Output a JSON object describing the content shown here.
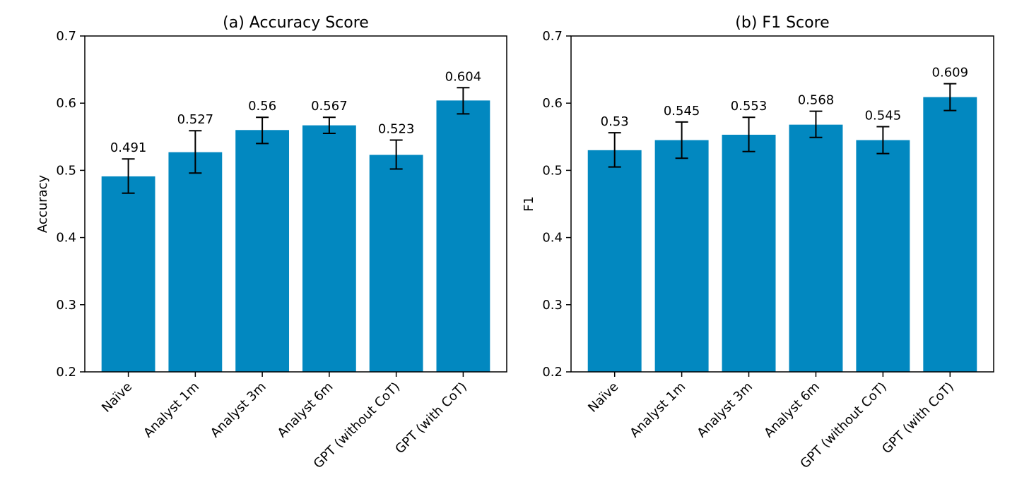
{
  "chart_data": [
    {
      "type": "bar",
      "title": "(a) Accuracy Score",
      "xlabel": "",
      "ylabel": "Accuracy",
      "ylim": [
        0.2,
        0.7
      ],
      "yticks": [
        "0.2",
        "0.3",
        "0.4",
        "0.5",
        "0.6",
        "0.7"
      ],
      "categories": [
        "Naïve",
        "Analyst 1m",
        "Analyst 3m",
        "Analyst 6m",
        "GPT (without CoT)",
        "GPT (with CoT)"
      ],
      "values": [
        0.491,
        0.527,
        0.56,
        0.567,
        0.523,
        0.604
      ],
      "value_labels": [
        "0.491",
        "0.527",
        "0.56",
        "0.567",
        "0.523",
        "0.604"
      ],
      "error_low": [
        0.466,
        0.496,
        0.54,
        0.555,
        0.502,
        0.584
      ],
      "error_high": [
        0.517,
        0.559,
        0.579,
        0.579,
        0.545,
        0.623
      ],
      "bar_color": "#0288c0",
      "grid": false
    },
    {
      "type": "bar",
      "title": "(b) F1 Score",
      "xlabel": "",
      "ylabel": "F1",
      "ylim": [
        0.2,
        0.7
      ],
      "yticks": [
        "0.2",
        "0.3",
        "0.4",
        "0.5",
        "0.6",
        "0.7"
      ],
      "categories": [
        "Naïve",
        "Analyst 1m",
        "Analyst 3m",
        "Analyst 6m",
        "GPT (without CoT)",
        "GPT (with CoT)"
      ],
      "values": [
        0.53,
        0.545,
        0.553,
        0.568,
        0.545,
        0.609
      ],
      "value_labels": [
        "0.53",
        "0.545",
        "0.553",
        "0.568",
        "0.545",
        "0.609"
      ],
      "error_low": [
        0.505,
        0.518,
        0.528,
        0.549,
        0.525,
        0.589
      ],
      "error_high": [
        0.556,
        0.572,
        0.579,
        0.588,
        0.565,
        0.629
      ],
      "bar_color": "#0288c0",
      "grid": false
    }
  ]
}
